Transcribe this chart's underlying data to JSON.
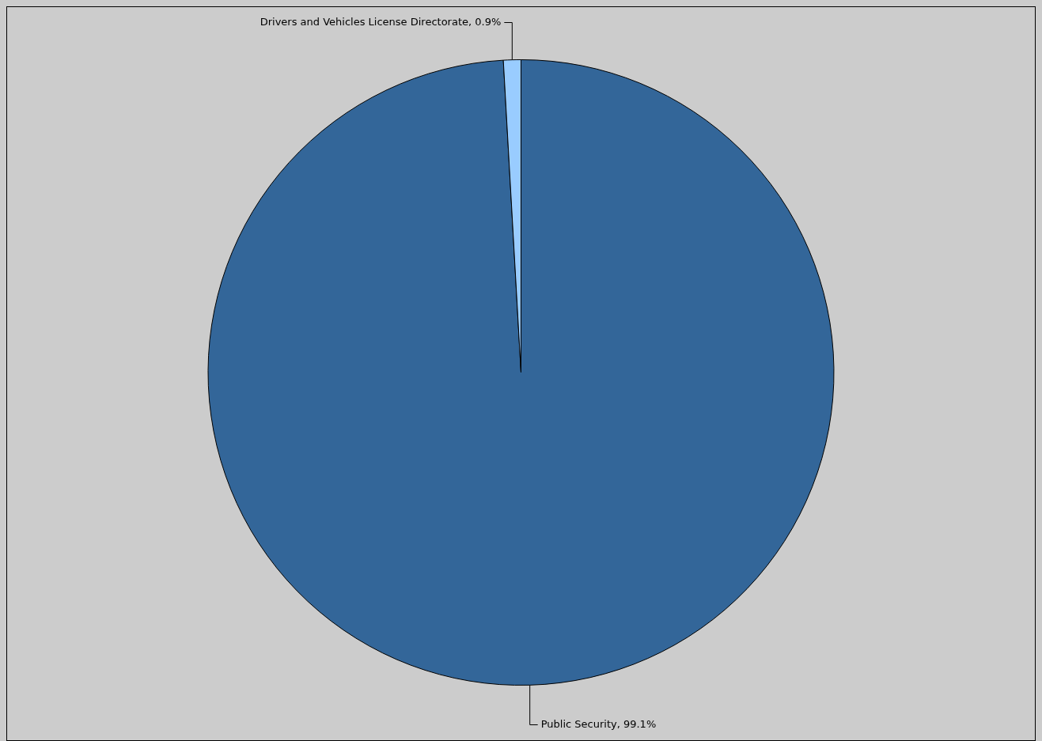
{
  "chart_data": {
    "type": "pie",
    "categories": [
      "Public Security",
      "Drivers and Vehicles License Directorate"
    ],
    "values": [
      99.1,
      0.9
    ],
    "colors": [
      "#336699",
      "#99ccff"
    ],
    "value_labels": [
      "99.1%",
      "0.9%"
    ],
    "legend": false
  }
}
